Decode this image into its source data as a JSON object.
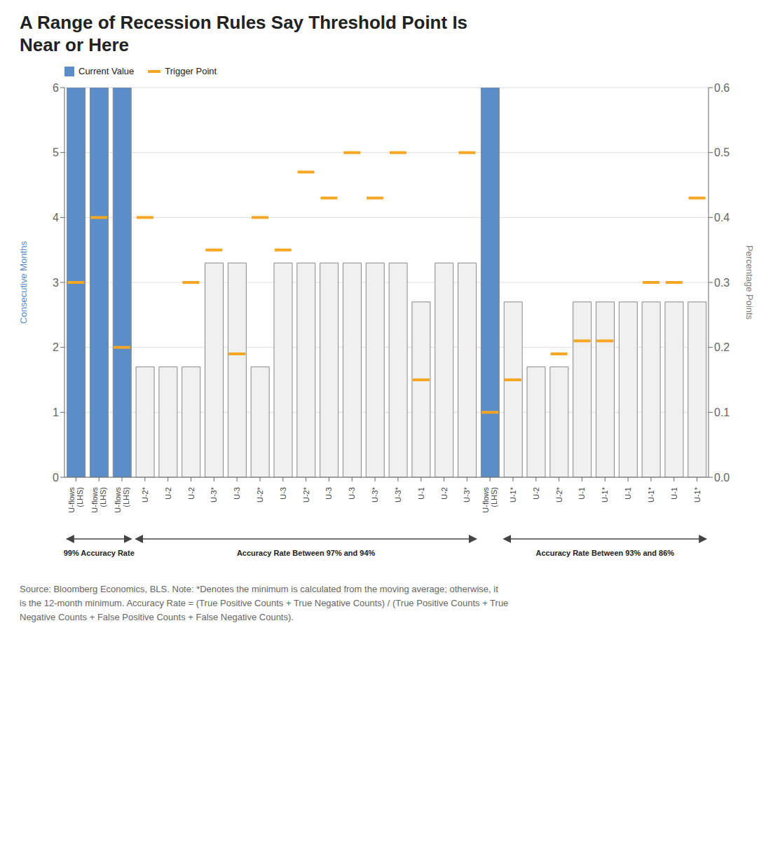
{
  "chart_data": {
    "type": "bar",
    "title": "A Range of Recession Rules Say Threshold Point Is\nNear or Here",
    "categories": [
      "U-flows\n(LHS)",
      "U-flows\n(LHS)",
      "U-flows\n(LHS)",
      "U-2*",
      "U-2",
      "U-2",
      "U-3*",
      "U-3",
      "U-2*",
      "U-3",
      "U-2*",
      "U-3",
      "U-3",
      "U-3*",
      "U-3*",
      "U-1",
      "U-2",
      "U-3*",
      "U-flows\n(LHS)",
      "U-1*",
      "U-2",
      "U-2*",
      "U-1",
      "U-1*",
      "U-1",
      "U-1*",
      "U-1",
      "U-1*"
    ],
    "series": [
      {
        "name": "Current Value",
        "type": "bar",
        "values": [
          6,
          6,
          6,
          1.7,
          1.7,
          1.7,
          3.3,
          3.3,
          1.7,
          3.3,
          3.3,
          3.3,
          3.3,
          3.3,
          3.3,
          2.7,
          3.3,
          3.3,
          6,
          2.7,
          1.7,
          1.7,
          2.7,
          2.7,
          2.7,
          2.7,
          2.7,
          2.7
        ],
        "colors": [
          "#5b8ec9",
          "#5b8ec9",
          "#5b8ec9",
          "#f0f0f0",
          "#f0f0f0",
          "#f0f0f0",
          "#f0f0f0",
          "#f0f0f0",
          "#f0f0f0",
          "#f0f0f0",
          "#f0f0f0",
          "#f0f0f0",
          "#f0f0f0",
          "#f0f0f0",
          "#f0f0f0",
          "#f0f0f0",
          "#f0f0f0",
          "#f0f0f0",
          "#5b8ec9",
          "#f0f0f0",
          "#f0f0f0",
          "#f0f0f0",
          "#f0f0f0",
          "#f0f0f0",
          "#f0f0f0",
          "#f0f0f0",
          "#f0f0f0",
          "#f0f0f0"
        ]
      },
      {
        "name": "Trigger Point",
        "type": "scatter",
        "marker": "dash",
        "color": "#f5a623",
        "values": [
          3.0,
          4.0,
          2.0,
          4.0,
          null,
          3.0,
          3.5,
          1.9,
          4.0,
          3.5,
          4.7,
          4.3,
          5.0,
          4.3,
          5.0,
          1.5,
          null,
          5.0,
          1.0,
          1.5,
          null,
          1.9,
          2.1,
          2.1,
          null,
          3.0,
          3.0,
          4.3
        ]
      }
    ],
    "y_label": "Consecutive Months",
    "y2_label": "Percentage Points",
    "ylim": [
      0,
      6
    ],
    "yticks": [
      0,
      1,
      2,
      3,
      4,
      5,
      6
    ],
    "y2lim": [
      0.0,
      0.6
    ],
    "y2ticks": [
      {
        "value": 0,
        "label": "0.0"
      },
      0.1,
      0.2,
      0.3,
      0.4,
      0.5,
      0.6
    ],
    "grid": true,
    "legend": "top left",
    "annotations": [
      "99% Accuracy Rate",
      "Accuracy Rate Between 97% and 94%",
      "Accuracy Rate Between 93% and 86%"
    ],
    "note": "Source: Bloomberg Economics, BLS. Note: *Denotes the minimum is calculated from the moving average; otherwise, it\nis the 12-month minimum. Accuracy Rate = (True Positive Counts + True Negative Counts) / (True Positive Counts + True\nNegative Counts + False Positive Counts + False Negative Counts)."
  }
}
